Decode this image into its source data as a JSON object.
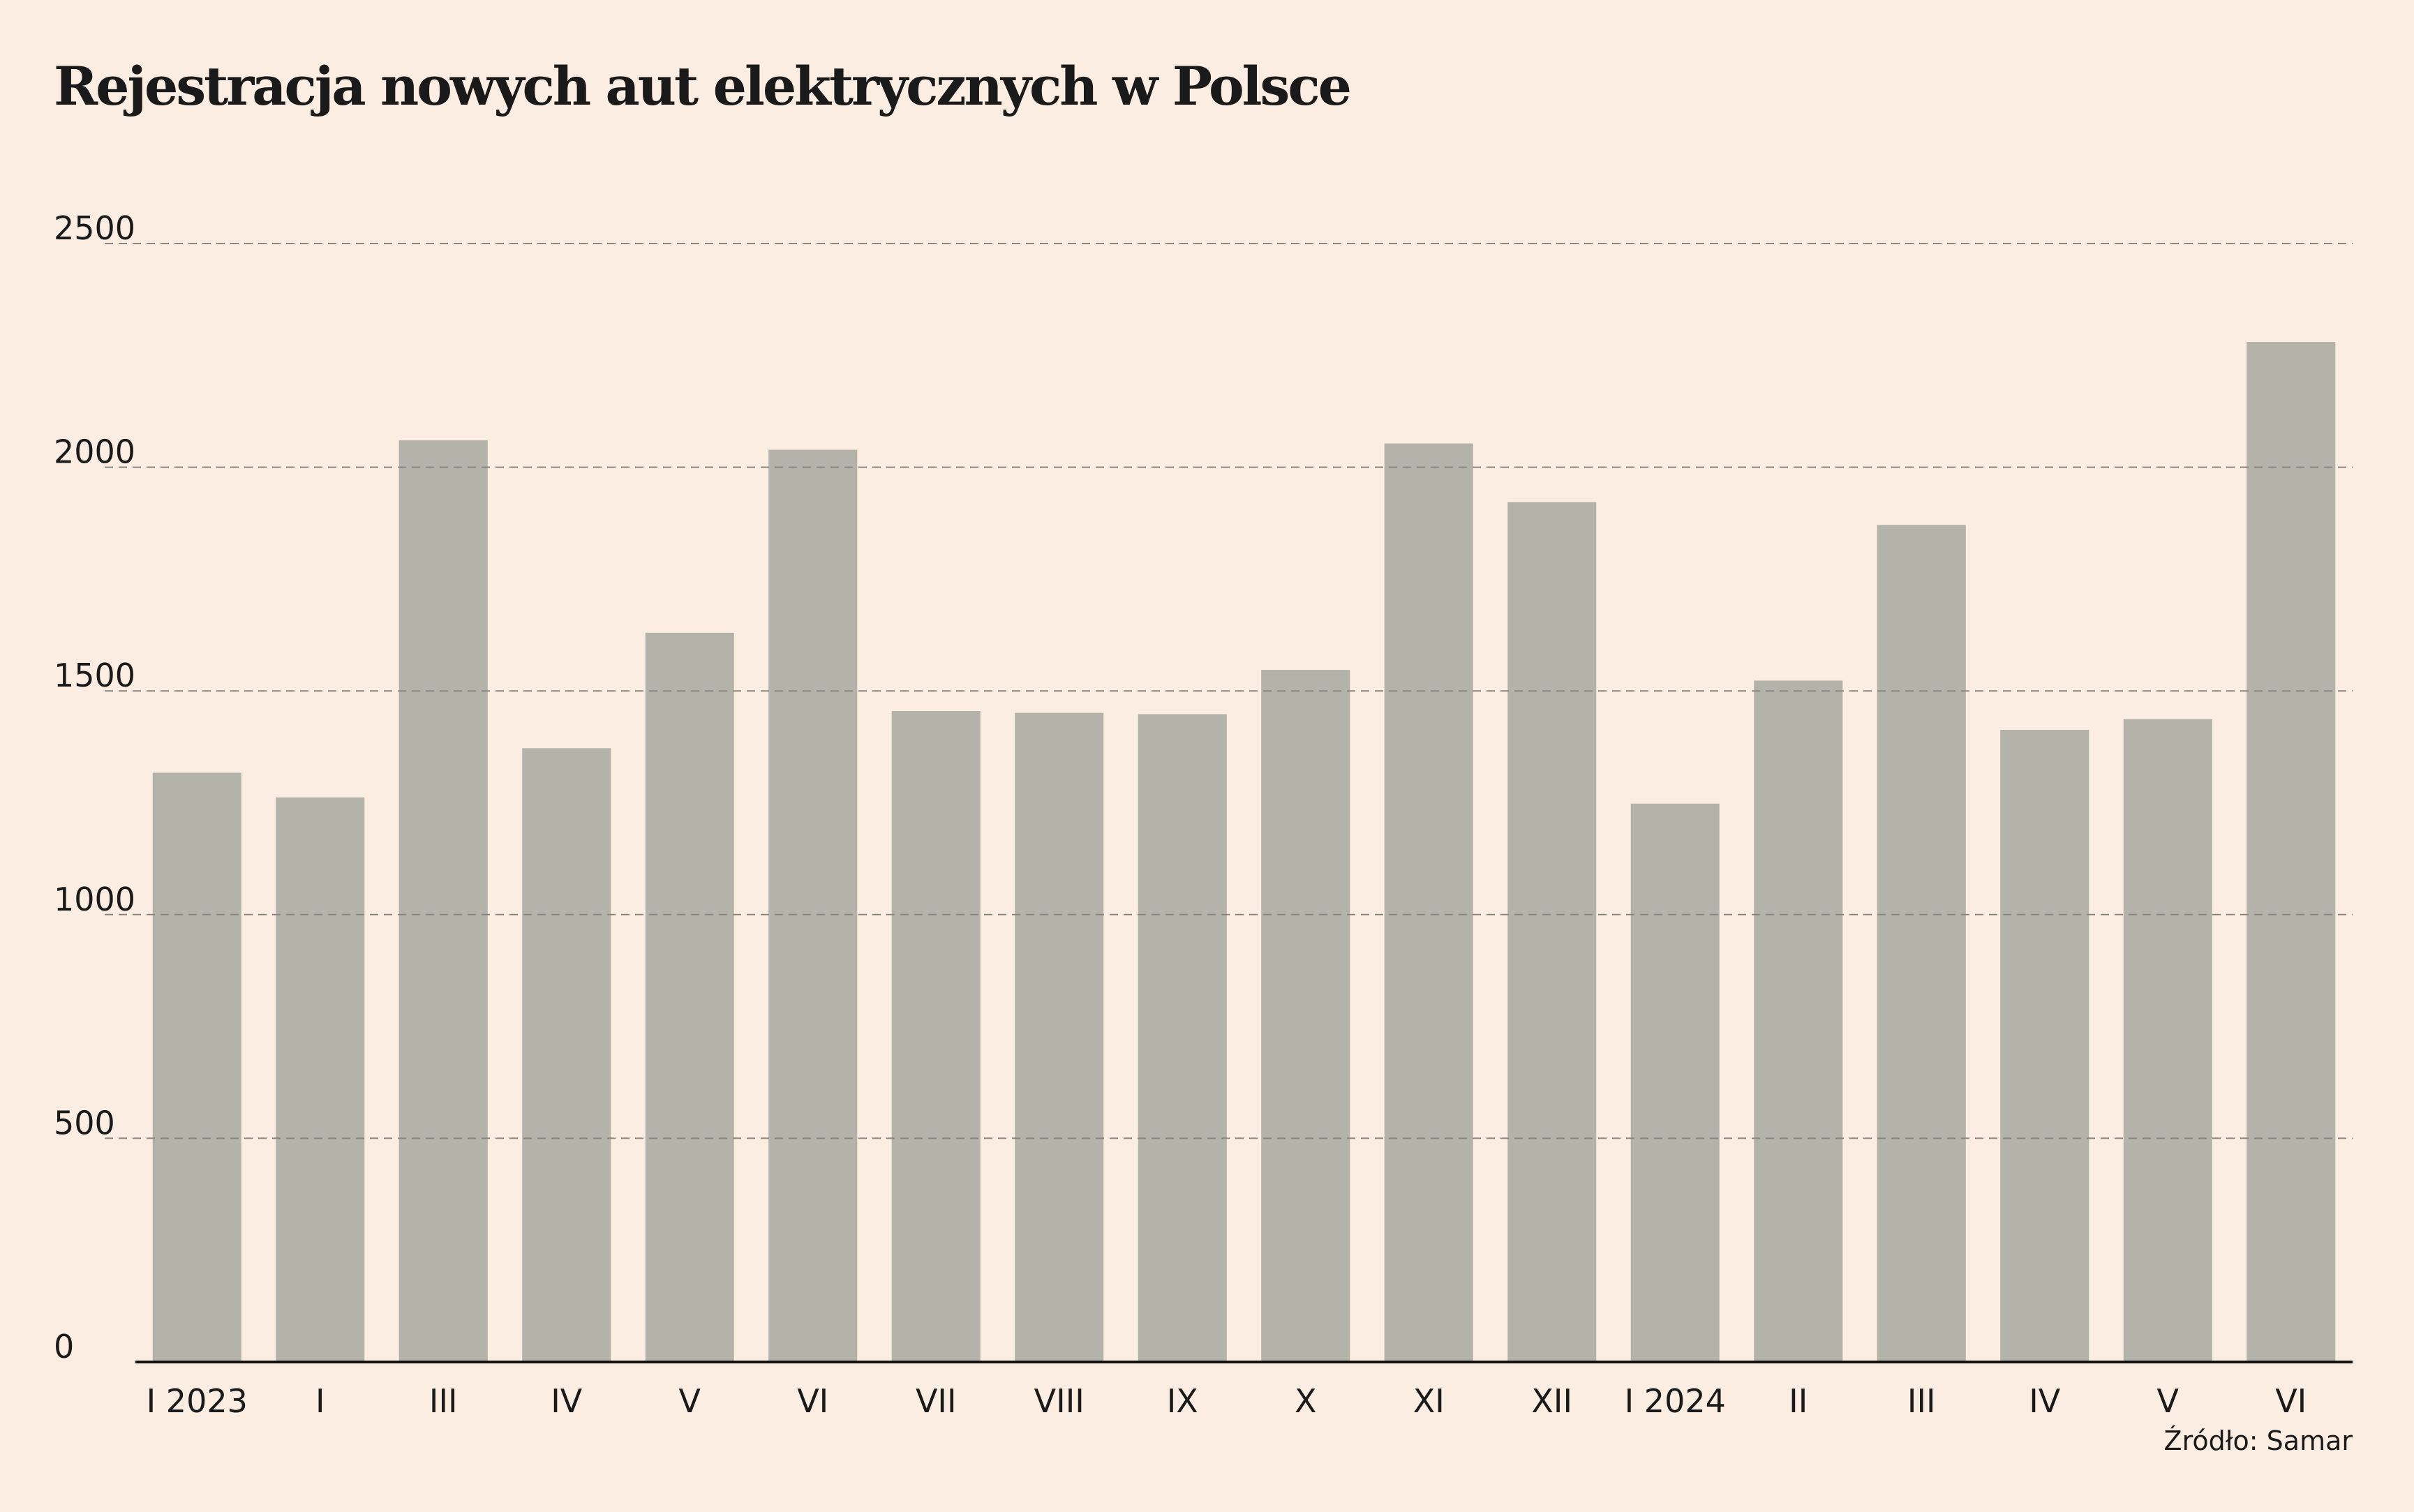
{
  "chart_data": {
    "type": "bar",
    "title": "Rejestracja nowych aut elektrycznych w Polsce",
    "categories": [
      "I 2023",
      "I",
      "III",
      "IV",
      "V",
      "VI",
      "VII",
      "VIII",
      "IX",
      "X",
      "XI",
      "XII",
      "I 2024",
      "II",
      "III",
      "IV",
      "V",
      "VI"
    ],
    "values": [
      1317,
      1262,
      2060,
      1372,
      1630,
      2039,
      1455,
      1451,
      1448,
      1547,
      2053,
      1922,
      1248,
      1523,
      1871,
      1413,
      1437,
      2280
    ],
    "color": "#b4b3aa",
    "ylim": [
      0,
      2500
    ],
    "yticks": [
      0,
      500,
      1000,
      1500,
      2000,
      2500
    ],
    "grid": true,
    "source": "Źródło: Samar"
  }
}
